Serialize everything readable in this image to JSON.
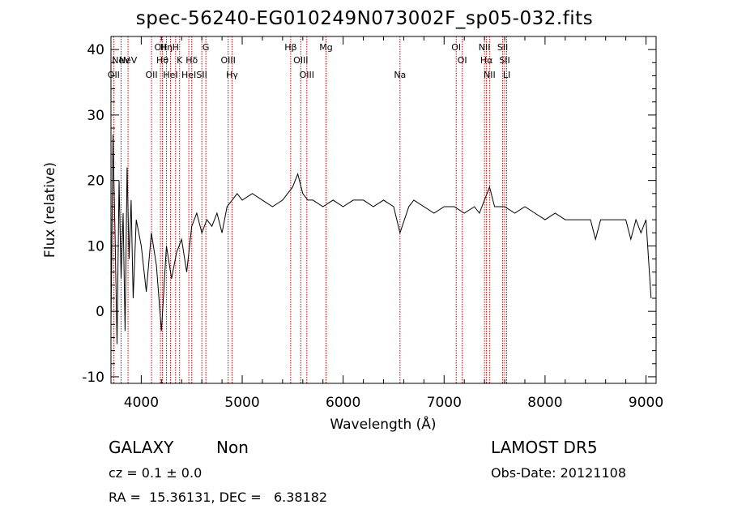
{
  "chart_data": {
    "type": "line",
    "title": "spec-56240-EG010249N073002F_sp05-032.fits",
    "xlabel": "Wavelength (Å)",
    "ylabel": "Flux (relative)",
    "xlim": [
      3700,
      9100
    ],
    "ylim": [
      -11,
      42
    ],
    "xticks": [
      4000,
      5000,
      6000,
      7000,
      8000,
      9000
    ],
    "yticks": [
      -10,
      0,
      10,
      20,
      30,
      40
    ],
    "grid": false,
    "line_color": "#000000",
    "marker_color": "#cc0000",
    "series": [
      {
        "x": [
          3700,
          3720,
          3740,
          3760,
          3780,
          3800,
          3820,
          3840,
          3860,
          3880,
          3900,
          3920,
          3950,
          4000,
          4050,
          4100,
          4150,
          4200,
          4250,
          4300,
          4350,
          4400,
          4450,
          4500,
          4550,
          4600,
          4650,
          4700,
          4750,
          4800,
          4850,
          4900,
          4950,
          5000,
          5100,
          5200,
          5300,
          5400,
          5500,
          5550,
          5600,
          5650,
          5700,
          5800,
          5900,
          6000,
          6100,
          6200,
          6300,
          6400,
          6500,
          6563,
          6650,
          6700,
          6800,
          6900,
          7000,
          7100,
          7200,
          7300,
          7350,
          7400,
          7450,
          7500,
          7550,
          7600,
          7700,
          7800,
          7900,
          8000,
          8100,
          8200,
          8300,
          8400,
          8450,
          8500,
          8550,
          8600,
          8700,
          8800,
          8850,
          8900,
          8950,
          9000,
          9050
        ],
        "y": [
          -2,
          27,
          12,
          -5,
          20,
          5,
          15,
          -3,
          22,
          8,
          17,
          2,
          14,
          10,
          3,
          12,
          7,
          -3,
          10,
          5,
          9,
          11,
          6,
          13,
          15,
          12,
          14,
          13,
          15,
          12,
          16,
          17,
          18,
          17,
          18,
          17,
          16,
          17,
          19,
          21,
          18,
          17,
          17,
          16,
          17,
          16,
          17,
          17,
          16,
          17,
          16,
          12,
          16,
          17,
          16,
          15,
          16,
          16,
          15,
          16,
          15,
          17,
          19,
          16,
          16,
          16,
          15,
          16,
          15,
          14,
          15,
          14,
          14,
          14,
          14,
          11,
          14,
          14,
          14,
          14,
          11,
          14,
          12,
          14,
          2
        ]
      }
    ],
    "lines": [
      {
        "wavelength": 3727,
        "label": "OII",
        "row": 3
      },
      {
        "wavelength": 3800,
        "label": "NeV",
        "row": 2
      },
      {
        "wavelength": 3869,
        "label": "NeV",
        "row": 2
      },
      {
        "wavelength": 4102,
        "label": "OII",
        "row": 3
      },
      {
        "wavelength": 4190,
        "label": "OII",
        "row": 1
      },
      {
        "wavelength": 4210,
        "label": "Hθ",
        "row": 2
      },
      {
        "wavelength": 4250,
        "label": "Hη",
        "row": 1
      },
      {
        "wavelength": 4290,
        "label": "HeI",
        "row": 3
      },
      {
        "wavelength": 4340,
        "label": "H",
        "row": 1
      },
      {
        "wavelength": 4380,
        "label": "K",
        "row": 2
      },
      {
        "wavelength": 4471,
        "label": "HeI",
        "row": 3
      },
      {
        "wavelength": 4500,
        "label": "Hδ",
        "row": 2
      },
      {
        "wavelength": 4600,
        "label": "SII",
        "row": 3
      },
      {
        "wavelength": 4640,
        "label": "G",
        "row": 1
      },
      {
        "wavelength": 4861,
        "label": "OIII",
        "row": 2
      },
      {
        "wavelength": 4900,
        "label": "Hγ",
        "row": 3
      },
      {
        "wavelength": 5480,
        "label": "Hβ",
        "row": 1
      },
      {
        "wavelength": 5580,
        "label": "OIII",
        "row": 2
      },
      {
        "wavelength": 5640,
        "label": "OIII",
        "row": 3
      },
      {
        "wavelength": 5830,
        "label": "Mg",
        "row": 1
      },
      {
        "wavelength": 6563,
        "label": "Na",
        "row": 3
      },
      {
        "wavelength": 7120,
        "label": "OI",
        "row": 1
      },
      {
        "wavelength": 7180,
        "label": "OI",
        "row": 2
      },
      {
        "wavelength": 7400,
        "label": "NII",
        "row": 1
      },
      {
        "wavelength": 7420,
        "label": "Hα",
        "row": 2
      },
      {
        "wavelength": 7450,
        "label": "NII",
        "row": 3
      },
      {
        "wavelength": 7580,
        "label": "SII",
        "row": 1
      },
      {
        "wavelength": 7600,
        "label": "SII",
        "row": 2
      },
      {
        "wavelength": 7620,
        "label": "LI",
        "row": 3
      }
    ]
  },
  "info": {
    "object_class": "GALAXY",
    "subclass": "Non",
    "survey": "LAMOST DR5",
    "cz": "cz = 0.1 ± 0.0",
    "obs_date": "Obs-Date: 20121108",
    "radec": "RA =  15.36131, DEC =   6.38182"
  }
}
